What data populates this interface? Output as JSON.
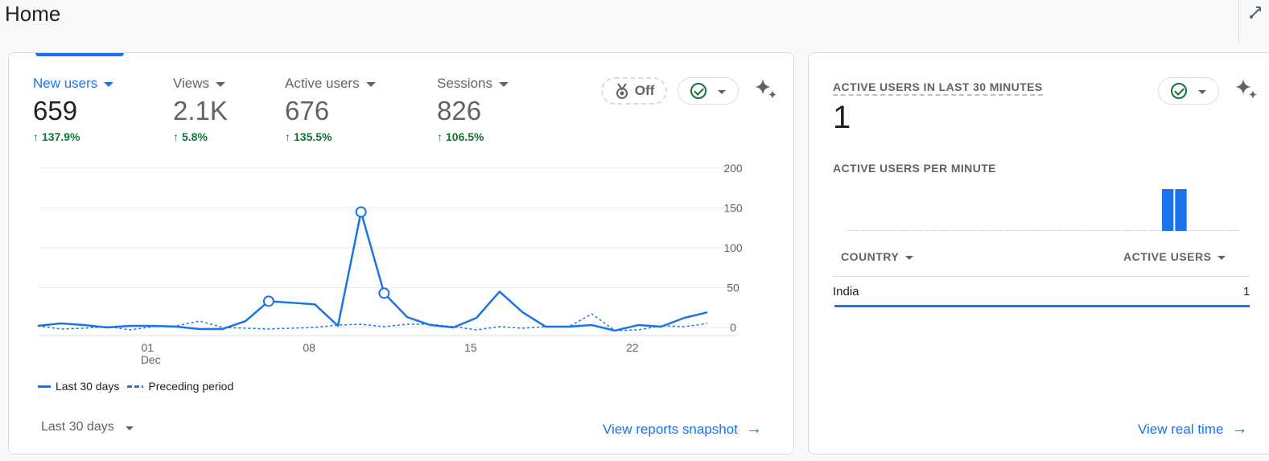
{
  "page": {
    "title": "Home"
  },
  "metrics": [
    {
      "label": "New users",
      "value": "659",
      "change": "137.9%",
      "active": true
    },
    {
      "label": "Views",
      "value": "2.1K",
      "change": "5.8%",
      "active": false
    },
    {
      "label": "Active users",
      "value": "676",
      "change": "135.5%",
      "active": false
    },
    {
      "label": "Sessions",
      "value": "826",
      "change": "106.5%",
      "active": false
    }
  ],
  "controls": {
    "benchmark_label": "Off",
    "benchmark_icon": "medal-icon",
    "status_icon": "check-circle-icon",
    "insights_icon": "sparkle-icon"
  },
  "chart_data": {
    "type": "line",
    "x_tick_labels": [
      {
        "label": "01",
        "sub": "Dec",
        "day_index": 5
      },
      {
        "label": "08",
        "sub": "",
        "day_index": 12
      },
      {
        "label": "15",
        "sub": "",
        "day_index": 19
      },
      {
        "label": "22",
        "sub": "",
        "day_index": 26
      }
    ],
    "y_tick_labels": [
      "200",
      "150",
      "100",
      "50",
      "0"
    ],
    "ylim": [
      0,
      200
    ],
    "series": [
      {
        "name": "Last 30 days",
        "style": "solid",
        "values": [
          2,
          5,
          3,
          0,
          2,
          2,
          1,
          -2,
          -2,
          8,
          33,
          31,
          29,
          2,
          145,
          43,
          13,
          3,
          0,
          12,
          45,
          19,
          1,
          1,
          3,
          -4,
          3,
          1,
          12,
          19
        ],
        "marked_indices": [
          10,
          14,
          15
        ]
      },
      {
        "name": "Preceding period",
        "style": "dashed",
        "values": [
          2,
          -2,
          -1,
          1,
          -3,
          1,
          2,
          8,
          0,
          -1,
          -2,
          -1,
          0,
          3,
          4,
          1,
          4,
          4,
          1,
          -3,
          1,
          -1,
          1,
          1,
          17,
          -4,
          -3,
          2,
          1,
          5
        ]
      }
    ],
    "legend_placement": "bottom-left",
    "grid": true
  },
  "date_range": {
    "label": "Last 30 days"
  },
  "links": {
    "reports_snapshot": "View reports snapshot",
    "real_time": "View real time"
  },
  "realtime": {
    "title": "ACTIVE USERS IN LAST 30 MINUTES",
    "value": "1",
    "per_minute_label": "ACTIVE USERS PER MINUTE",
    "per_minute_values": [
      0,
      0,
      0,
      0,
      0,
      0,
      0,
      0,
      0,
      0,
      0,
      0,
      0,
      0,
      0,
      0,
      0,
      0,
      0,
      0,
      0,
      0,
      0,
      0,
      1,
      1,
      0,
      0,
      0,
      0
    ],
    "table": {
      "columns": [
        "COUNTRY",
        "ACTIVE USERS"
      ],
      "rows": [
        {
          "country": "India",
          "users": "1"
        }
      ]
    }
  },
  "colors": {
    "accent": "#1a73e8",
    "positive": "#137333",
    "muted": "#5f6368"
  }
}
